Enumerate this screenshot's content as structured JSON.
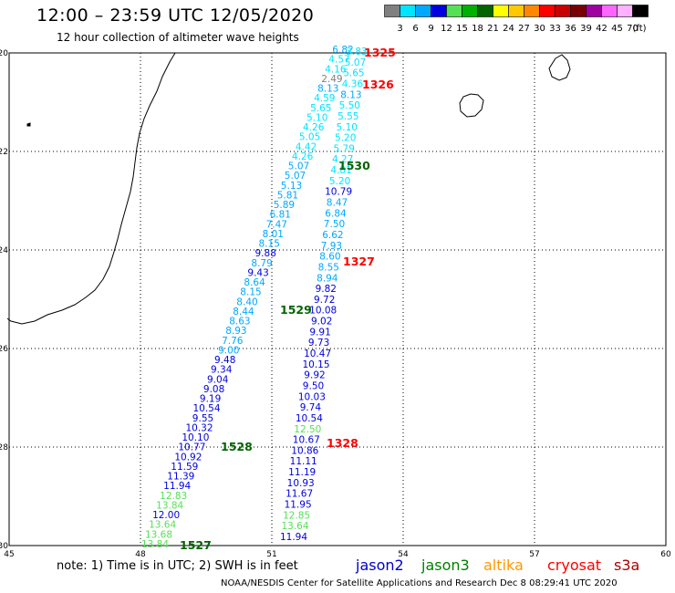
{
  "header": {
    "title": "12:00 – 23:59 UTC 12/05/2020",
    "subtitle": "12 hour collection of altimeter wave heights"
  },
  "colorbar": {
    "labels": [
      "3",
      "6",
      "9",
      "12",
      "15",
      "18",
      "21",
      "24",
      "27",
      "30",
      "33",
      "36",
      "39",
      "42",
      "45",
      "70",
      "(ft)"
    ],
    "colors": [
      "#808080",
      "#00e5ff",
      "#00a8ff",
      "#0000e0",
      "#55e055",
      "#00b000",
      "#006400",
      "#ffff00",
      "#ffc800",
      "#ff8800",
      "#ff0000",
      "#c80000",
      "#780000",
      "#a000a0",
      "#ff66ff",
      "#ffb0ff",
      "#000000"
    ]
  },
  "axes": {
    "x_ticks": [
      "45",
      "48",
      "51",
      "54",
      "57",
      "60"
    ],
    "y_ticks": [
      "-20",
      "-22",
      "-24",
      "-26",
      "-28",
      "-30"
    ]
  },
  "satellite_colors": {
    "jason2": "#0000cc",
    "jason3": "#008000",
    "altika": "#ff9900",
    "cryosat": "#ff0000",
    "s3a": "#aa0000"
  },
  "tracks": {
    "track_1527_1528": {
      "labels": [
        {
          "text": "1527",
          "color": "#006400"
        },
        {
          "text": "1528",
          "color": "#006400"
        }
      ],
      "values": [
        {
          "v": "13.84",
          "c": "#55e055"
        },
        {
          "v": "13.68",
          "c": "#55e055"
        },
        {
          "v": "13.64",
          "c": "#55e055"
        },
        {
          "v": "12.00",
          "c": "#0000e0"
        },
        {
          "v": "13.84",
          "c": "#55e055"
        },
        {
          "v": "12.83",
          "c": "#55e055"
        },
        {
          "v": "11.94",
          "c": "#0000e0"
        },
        {
          "v": "11.39",
          "c": "#0000e0"
        },
        {
          "v": "11.59",
          "c": "#0000e0"
        },
        {
          "v": "10.92",
          "c": "#0000e0"
        },
        {
          "v": "10.77",
          "c": "#0000e0"
        },
        {
          "v": "10.10",
          "c": "#0000e0"
        },
        {
          "v": "10.32",
          "c": "#0000e0"
        },
        {
          "v": "9.55",
          "c": "#0000e0"
        },
        {
          "v": "10.54",
          "c": "#0000e0"
        },
        {
          "v": "9.19",
          "c": "#0000e0"
        },
        {
          "v": "9.08",
          "c": "#0000e0"
        },
        {
          "v": "9.04",
          "c": "#0000e0"
        },
        {
          "v": "9.34",
          "c": "#0000e0"
        },
        {
          "v": "9.48",
          "c": "#0000e0"
        },
        {
          "v": "9.00",
          "c": "#00a8ff"
        },
        {
          "v": "7.76",
          "c": "#00a8ff"
        },
        {
          "v": "8.93",
          "c": "#00a8ff"
        },
        {
          "v": "8.63",
          "c": "#00a8ff"
        },
        {
          "v": "8.44",
          "c": "#00a8ff"
        },
        {
          "v": "8.40",
          "c": "#00a8ff"
        },
        {
          "v": "8.15",
          "c": "#00a8ff"
        },
        {
          "v": "8.64",
          "c": "#00a8ff"
        },
        {
          "v": "9.43",
          "c": "#0000e0"
        },
        {
          "v": "8.79",
          "c": "#00a8ff"
        },
        {
          "v": "9.88",
          "c": "#0000e0"
        },
        {
          "v": "8.15",
          "c": "#00a8ff"
        },
        {
          "v": "8.01",
          "c": "#00a8ff"
        },
        {
          "v": "7.47",
          "c": "#00a8ff"
        },
        {
          "v": "6.81",
          "c": "#00a8ff"
        },
        {
          "v": "5.89",
          "c": "#00a8ff"
        },
        {
          "v": "5.81",
          "c": "#00a8ff"
        },
        {
          "v": "5.13",
          "c": "#00a8ff"
        },
        {
          "v": "5.07",
          "c": "#00a8ff"
        },
        {
          "v": "5.07",
          "c": "#00a8ff"
        },
        {
          "v": "4.26",
          "c": "#00e5ff"
        },
        {
          "v": "4.42",
          "c": "#00e5ff"
        },
        {
          "v": "5.05",
          "c": "#00e5ff"
        },
        {
          "v": "4.26",
          "c": "#00e5ff"
        },
        {
          "v": "5.10",
          "c": "#00e5ff"
        },
        {
          "v": "5.65",
          "c": "#00e5ff"
        },
        {
          "v": "4.59",
          "c": "#00e5ff"
        },
        {
          "v": "8.13",
          "c": "#00a8ff"
        },
        {
          "v": "2.49",
          "c": "#808080"
        },
        {
          "v": "4.16",
          "c": "#00e5ff"
        },
        {
          "v": "4.57",
          "c": "#00e5ff"
        },
        {
          "v": "6.82",
          "c": "#00a8ff"
        }
      ]
    },
    "track_1528_1529": {
      "labels": [
        {
          "text": "1529",
          "color": "#006400"
        },
        {
          "text": "1530",
          "color": "#006400"
        }
      ]
    },
    "track_cryosat": {
      "labels": [
        {
          "text": "1325",
          "color": "#ff0000"
        },
        {
          "text": "1326",
          "color": "#ff0000"
        },
        {
          "text": "1327",
          "color": "#ff0000"
        },
        {
          "text": "1328",
          "color": "#ff0000"
        }
      ],
      "values": [
        {
          "v": "11.94",
          "c": "#0000e0"
        },
        {
          "v": "13.64",
          "c": "#55e055"
        },
        {
          "v": "12.85",
          "c": "#55e055"
        },
        {
          "v": "11.95",
          "c": "#0000e0"
        },
        {
          "v": "11.67",
          "c": "#0000e0"
        },
        {
          "v": "10.93",
          "c": "#0000e0"
        },
        {
          "v": "11.19",
          "c": "#0000e0"
        },
        {
          "v": "11.11",
          "c": "#0000e0"
        },
        {
          "v": "10.86",
          "c": "#0000e0"
        },
        {
          "v": "10.67",
          "c": "#0000e0"
        },
        {
          "v": "12.50",
          "c": "#55e055"
        },
        {
          "v": "10.54",
          "c": "#0000e0"
        },
        {
          "v": "9.74",
          "c": "#0000e0"
        },
        {
          "v": "10.03",
          "c": "#0000e0"
        },
        {
          "v": "9.50",
          "c": "#0000e0"
        },
        {
          "v": "9.92",
          "c": "#0000e0"
        },
        {
          "v": "10.15",
          "c": "#0000e0"
        },
        {
          "v": "10.47",
          "c": "#0000e0"
        },
        {
          "v": "9.73",
          "c": "#0000e0"
        },
        {
          "v": "9.91",
          "c": "#0000e0"
        },
        {
          "v": "9.02",
          "c": "#0000e0"
        },
        {
          "v": "10.08",
          "c": "#0000e0"
        },
        {
          "v": "9.72",
          "c": "#0000e0"
        },
        {
          "v": "9.82",
          "c": "#0000e0"
        },
        {
          "v": "8.94",
          "c": "#00a8ff"
        },
        {
          "v": "8.55",
          "c": "#00a8ff"
        },
        {
          "v": "8.60",
          "c": "#00a8ff"
        },
        {
          "v": "7.93",
          "c": "#00a8ff"
        },
        {
          "v": "6.62",
          "c": "#00a8ff"
        },
        {
          "v": "7.50",
          "c": "#00a8ff"
        },
        {
          "v": "6.84",
          "c": "#00a8ff"
        },
        {
          "v": "8.47",
          "c": "#00a8ff"
        },
        {
          "v": "10.79",
          "c": "#0000e0"
        },
        {
          "v": "5.20",
          "c": "#00e5ff"
        },
        {
          "v": "4.81",
          "c": "#00e5ff"
        },
        {
          "v": "4.27",
          "c": "#00e5ff"
        },
        {
          "v": "5.79",
          "c": "#00e5ff"
        },
        {
          "v": "5.20",
          "c": "#00e5ff"
        },
        {
          "v": "5.10",
          "c": "#00e5ff"
        },
        {
          "v": "5.55",
          "c": "#00e5ff"
        },
        {
          "v": "5.50",
          "c": "#00e5ff"
        },
        {
          "v": "8.13",
          "c": "#00a8ff"
        },
        {
          "v": "4.36",
          "c": "#00e5ff"
        },
        {
          "v": "5.65",
          "c": "#00e5ff"
        },
        {
          "v": "5.07",
          "c": "#00e5ff"
        },
        {
          "v": "3.83",
          "c": "#00e5ff"
        }
      ]
    }
  },
  "footer": {
    "note": "note: 1) Time is in UTC; 2) SWH is in feet",
    "satellites": [
      "jason2",
      "jason3",
      "altika",
      "cryosat",
      "s3a"
    ],
    "credit": "NOAA/NESDIS Center for Satellite Applications and Research   Dec  8 08:29:41 UTC 2020"
  }
}
